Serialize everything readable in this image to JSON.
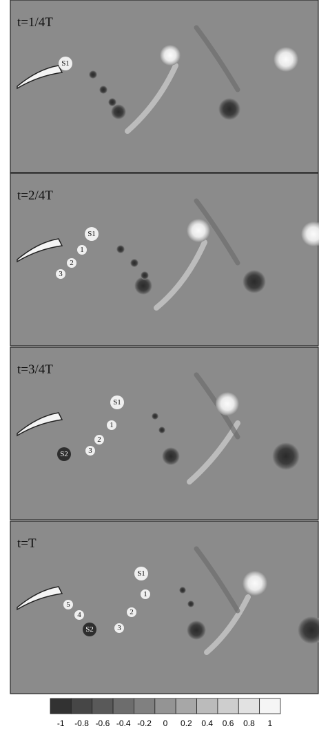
{
  "panels": [
    {
      "label": "t=1/4T",
      "vortices": [
        "S1"
      ]
    },
    {
      "label": "t=2/4T",
      "vortices": [
        "S1",
        "1",
        "2",
        "3"
      ]
    },
    {
      "label": "t=3/4T",
      "vortices": [
        "S1",
        "1",
        "2",
        "3",
        "S2"
      ]
    },
    {
      "label": "t=T",
      "vortices": [
        "S1",
        "1",
        "2",
        "3",
        "S2",
        "4",
        "5"
      ]
    }
  ],
  "colorbar": {
    "ticks": [
      -1,
      -0.8,
      -0.6,
      -0.4,
      -0.2,
      0,
      0.2,
      0.4,
      0.6,
      0.8,
      1
    ]
  }
}
